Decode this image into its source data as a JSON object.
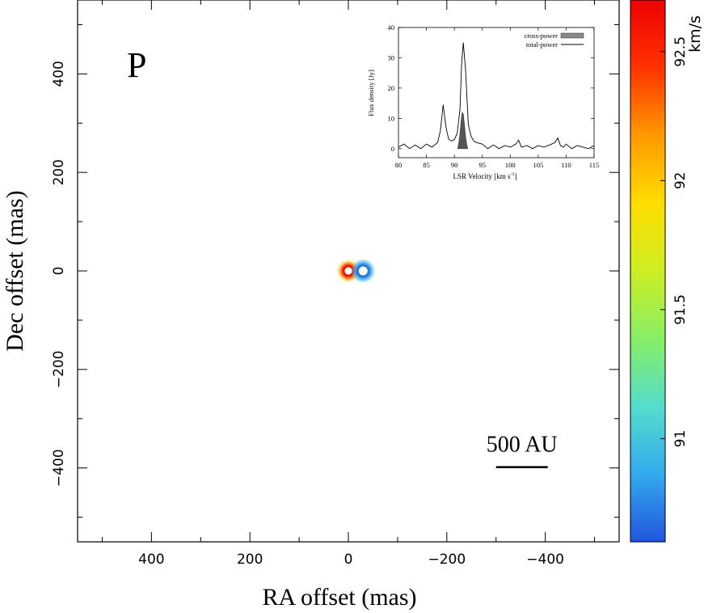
{
  "chart_data": [
    {
      "type": "scatter",
      "panel_label": "P",
      "xlabel": "RA offset (mas)",
      "ylabel": "Dec offset (mas)",
      "xlim": [
        550,
        -550
      ],
      "ylim": [
        -550,
        550
      ],
      "x_ticks": [
        400,
        200,
        0,
        -200,
        -400
      ],
      "x_tick_labels": [
        "400",
        "200",
        "0",
        "−200",
        "−400"
      ],
      "y_ticks": [
        400,
        200,
        0,
        -200,
        -400
      ],
      "y_tick_labels": [
        "400",
        "200",
        "0",
        "−200",
        "−400"
      ],
      "grid": false,
      "scale_bar": {
        "label": "500 AU",
        "x_from": -300,
        "x_to": -405,
        "y": -400
      },
      "points": [
        {
          "x": 0,
          "y": 0,
          "velocity": 92.5
        },
        {
          "x": -30,
          "y": 0,
          "velocity": 90.8
        }
      ],
      "colorbar": {
        "label": "km/s",
        "range": [
          90.6,
          92.7
        ],
        "ticks": [
          91,
          91.5,
          92,
          92.5
        ],
        "tick_labels": [
          "91",
          "91.5",
          "92",
          "92.5"
        ],
        "colors": [
          "#2255dd",
          "#33aaee",
          "#55ddcc",
          "#88ee66",
          "#ccee22",
          "#ffdd00",
          "#ff9900",
          "#ff3300",
          "#ee0000"
        ]
      }
    },
    {
      "type": "line",
      "xlabel": "LSR Velocity [km s",
      "xlabel_sup": "-1",
      "xlabel_end": "]",
      "ylabel": "Flux density [Jy]",
      "xlim": [
        80,
        115
      ],
      "ylim": [
        -3,
        40
      ],
      "x_ticks": [
        80,
        85,
        90,
        95,
        100,
        105,
        110,
        115
      ],
      "y_ticks": [
        0,
        10,
        20,
        30,
        40
      ],
      "legend_position": "top-right",
      "series": [
        {
          "name": "total-power",
          "x": [
            80,
            81,
            82,
            83,
            84,
            85,
            86,
            87,
            87.5,
            88,
            88.5,
            89,
            89.5,
            90,
            90.5,
            91,
            91.3,
            91.6,
            92,
            92.5,
            93,
            93.5,
            94,
            95,
            96,
            97,
            98,
            99,
            100,
            101,
            101.5,
            102,
            103,
            104,
            105,
            106,
            107,
            108,
            108.5,
            109,
            109.5,
            110,
            111,
            112,
            113,
            114,
            115
          ],
          "y": [
            0.5,
            1.5,
            0,
            1.2,
            0,
            1.5,
            0.5,
            2,
            6,
            14.5,
            7,
            3,
            2.5,
            3,
            5,
            13,
            28,
            35,
            26,
            8,
            4,
            2.5,
            2,
            1.5,
            0,
            1.2,
            0,
            1,
            0.5,
            1.5,
            2.8,
            0.5,
            1,
            0,
            1,
            0.5,
            1.2,
            2,
            3.5,
            1,
            0.5,
            1.5,
            0,
            1,
            0.5,
            0,
            1
          ]
        },
        {
          "name": "cross-power",
          "x": [
            90.6,
            90.8,
            91,
            91.2,
            91.4,
            91.6,
            91.8,
            92,
            92.2,
            92.4
          ],
          "y": [
            0,
            2,
            5,
            9,
            12,
            11.5,
            8,
            4,
            1.5,
            0
          ]
        }
      ]
    }
  ]
}
